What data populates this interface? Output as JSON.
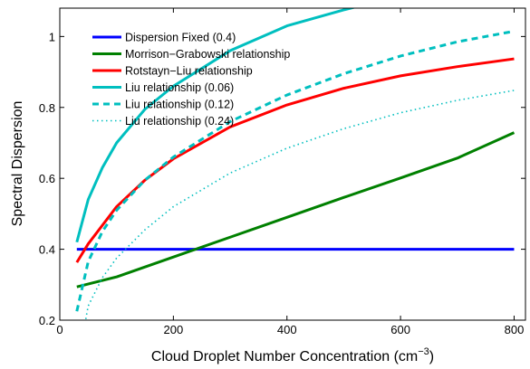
{
  "chart_data": {
    "type": "line",
    "xlabel": "Cloud Droplet Number Concentration (cm",
    "xlabel_sup": "−3",
    "xlabel_close": ")",
    "ylabel": "Spectral Dispersion",
    "xlim": [
      0,
      820
    ],
    "ylim": [
      0.2,
      1.08
    ],
    "xticks": [
      0,
      200,
      400,
      600,
      800
    ],
    "yticks": [
      0.2,
      0.4,
      0.6,
      0.8,
      1.0
    ],
    "xtick_labels": [
      "0",
      "200",
      "400",
      "600",
      "800"
    ],
    "ytick_labels": [
      "0.2",
      "0.4",
      "0.6",
      "0.8",
      "1"
    ],
    "grid": false,
    "legend_position": "top-left",
    "series": [
      {
        "name": "Dispersion Fixed (0.4)",
        "color": "#0000ff",
        "style": "solid",
        "x": [
          30,
          800
        ],
        "y": [
          0.4,
          0.4
        ]
      },
      {
        "name": "Morrison−Grabowski relationship",
        "color": "#008000",
        "style": "solid",
        "x": [
          30,
          100,
          200,
          300,
          400,
          500,
          600,
          700,
          800
        ],
        "y": [
          0.294,
          0.322,
          0.378,
          0.434,
          0.49,
          0.546,
          0.601,
          0.657,
          0.729
        ]
      },
      {
        "name": "Rotstayn−Liu relationship",
        "color": "#ff0000",
        "style": "solid",
        "x": [
          30,
          50,
          100,
          150,
          200,
          300,
          400,
          500,
          600,
          700,
          800
        ],
        "y": [
          0.363,
          0.415,
          0.52,
          0.595,
          0.655,
          0.745,
          0.807,
          0.854,
          0.889,
          0.915,
          0.937
        ]
      },
      {
        "name": "Liu relationship (0.06)",
        "color": "#00bfbf",
        "style": "solid",
        "x": [
          30,
          50,
          75,
          100,
          150,
          200,
          300,
          400,
          500,
          520
        ],
        "y": [
          0.42,
          0.54,
          0.63,
          0.7,
          0.795,
          0.86,
          0.96,
          1.03,
          1.075,
          1.083
        ]
      },
      {
        "name": "Liu relationship (0.12)",
        "color": "#00bfbf",
        "style": "dashed",
        "x": [
          30,
          50,
          75,
          100,
          150,
          200,
          300,
          400,
          500,
          600,
          700,
          800
        ],
        "y": [
          0.225,
          0.365,
          0.45,
          0.51,
          0.595,
          0.66,
          0.76,
          0.835,
          0.895,
          0.945,
          0.985,
          1.015
        ]
      },
      {
        "name": "Liu relationship (0.24)",
        "color": "#00bfbf",
        "style": "dotted",
        "x": [
          30,
          50,
          75,
          100,
          150,
          200,
          300,
          400,
          500,
          600,
          700,
          800
        ],
        "y": [
          0.065,
          0.24,
          0.32,
          0.375,
          0.455,
          0.52,
          0.615,
          0.685,
          0.74,
          0.785,
          0.82,
          0.848
        ]
      }
    ]
  }
}
